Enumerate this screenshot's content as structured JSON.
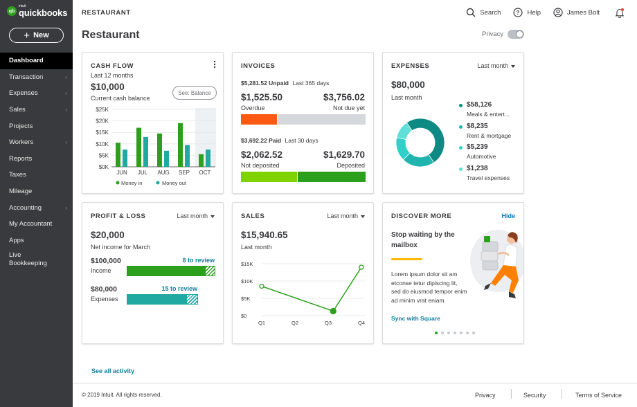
{
  "brand": {
    "intuit": "intuit",
    "name": "quickbooks",
    "mark": "qb",
    "accent": "#2ca01c"
  },
  "sidebar": {
    "new_label": "New",
    "items": [
      {
        "label": "Dashboard",
        "active": true,
        "chevron": false
      },
      {
        "label": "Transaction",
        "chevron": true
      },
      {
        "label": "Expenses",
        "chevron": true
      },
      {
        "label": "Sales",
        "chevron": true
      },
      {
        "label": "Projects",
        "chevron": false
      },
      {
        "label": "Workers",
        "chevron": true
      },
      {
        "label": "Reports",
        "chevron": false
      },
      {
        "label": "Taxes",
        "chevron": false
      },
      {
        "label": "Mileage",
        "chevron": false
      },
      {
        "label": "Accounting",
        "chevron": true
      },
      {
        "label": "My Accountant",
        "chevron": false
      },
      {
        "label": "Apps",
        "chevron": false
      },
      {
        "label": "Live Bookkeeping",
        "chevron": false
      }
    ]
  },
  "topbar": {
    "company": "RESTAURANT",
    "search": "Search",
    "help": "Help",
    "user": "James Bolt"
  },
  "page": {
    "title": "Restaurant",
    "privacy": "Privacy"
  },
  "cashflow": {
    "title": "CASH FLOW",
    "period": "Last 12 months",
    "amount": "$10,000",
    "caption": "Current cash balance",
    "button": "See: Balance",
    "legend_in": "Money in",
    "legend_out": "Money out",
    "color_in": "#2ca01c",
    "color_out": "#1fa9a1"
  },
  "cashflow_chart": {
    "type": "bar",
    "categories": [
      "JUN",
      "JUL",
      "AUG",
      "SEP",
      "OCT"
    ],
    "y_ticks": [
      "$0K",
      "$5K",
      "$10K",
      "$15K",
      "$20K",
      "$25K"
    ],
    "ylim": [
      0,
      25
    ],
    "series": [
      {
        "name": "Money in",
        "values": [
          10.5,
          17,
          14.5,
          19,
          5.5
        ]
      },
      {
        "name": "Money out",
        "values": [
          7.5,
          13,
          7,
          9.5,
          7.5
        ]
      }
    ]
  },
  "invoices": {
    "title": "INVOICES",
    "unpaid_amount": "$5,281.52 Unpaid",
    "unpaid_period": "Last 365 days",
    "overdue_amount": "$1,525.50",
    "overdue_label": "Overdue",
    "notdue_amount": "$3,756.02",
    "notdue_label": "Not due yet",
    "unpaid_fraction": 0.29,
    "paid_amount": "$3,692.22 Paid",
    "paid_period": "Last 30 days",
    "notdeposited_amount": "$2,062.52",
    "notdeposited_label": "Not deposited",
    "deposited_amount": "$1,629.70",
    "deposited_label": "Deposited",
    "paid_fraction": 0.45,
    "color_overdue": "#ff5a13",
    "color_notdue": "#d4d7dc",
    "color_notdeposited": "#7fd300",
    "color_deposited": "#2ca01c"
  },
  "expenses": {
    "title": "EXPENSES",
    "dropdown": "Last month",
    "amount": "$80,000",
    "caption": "Last month",
    "items": [
      {
        "amount": "$58,126",
        "label": "Meals & entert...",
        "color": "#0d8a83",
        "value": 58126
      },
      {
        "amount": "$8,235",
        "label": "Rent & mortgage",
        "color": "#1fb5ae",
        "value": 8235
      },
      {
        "amount": "$5,239",
        "label": "Automotive",
        "color": "#2ed0c8",
        "value": 5239
      },
      {
        "amount": "$1,238",
        "label": "Travel expenses",
        "color": "#5fdfd8",
        "value": 1238
      }
    ]
  },
  "profit_loss": {
    "title": "PROFIT & LOSS",
    "dropdown": "Last month",
    "amount": "$20,000",
    "caption": "Net income for March",
    "income_amount": "$100,000",
    "income_label": "Income",
    "income_review": "8 to review",
    "income_fraction": 0.9,
    "expenses_amount": "$80,000",
    "expenses_label": "Expenses",
    "expenses_review": "15 to review",
    "expenses_fraction": 0.85,
    "color_income": "#2ca01c",
    "color_expenses": "#1fa9a1"
  },
  "sales": {
    "title": "SALES",
    "dropdown": "Last month",
    "amount": "$15,940.65",
    "caption": "Last month"
  },
  "sales_chart": {
    "type": "line",
    "categories": [
      "Q1",
      "Q2",
      "Q3",
      "Q4"
    ],
    "y_ticks": [
      "$0",
      "$5K",
      "$10K",
      "$15K"
    ],
    "ylim": [
      0,
      15
    ],
    "series": [
      {
        "values": [
          8.5,
          null,
          1.3,
          14
        ]
      }
    ],
    "x_positions": [
      0,
      1.35,
      2.15,
      3
    ]
  },
  "discover": {
    "title": "DISCOVER MORE",
    "hide": "Hide",
    "headline": "Stop waiting by the mailbox",
    "body": "Lorem ipsum dolor sit am etconse tetur dipiscing lit, sed do eiusmod tempor enim ad minim vrat eniam.",
    "cta": "Sync with Square",
    "dots": 7,
    "active_dot": 0
  },
  "footer": {
    "see_all": "See all activity",
    "copyright": "© 2019 Intuit. All rights reserved.",
    "privacy": "Privacy",
    "security": "Security",
    "terms": "Terms of Service"
  }
}
